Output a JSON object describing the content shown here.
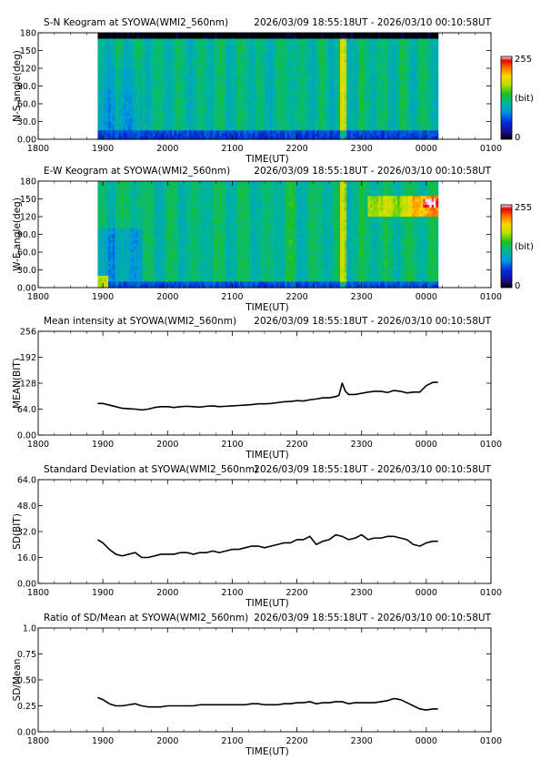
{
  "time_axis": {
    "ticks": [
      "1800",
      "1900",
      "2000",
      "2100",
      "2200",
      "2300",
      "0000",
      "0100"
    ],
    "xlabel": "TIME(UT)"
  },
  "colorbar": {
    "max_label": "255",
    "unit_label": "(bit)",
    "min_label": "0"
  },
  "chart_data": [
    {
      "type": "heatmap",
      "title": "S-N Keogram at SYOWA(WMI2_560nm)",
      "subtitle": "2026/03/09 18:55:18UT - 2026/03/10 00:10:58UT",
      "xlabel": "TIME(UT)",
      "ylabel": "N-S angle(deg)",
      "yticks": [
        "180",
        "150",
        "120",
        "90.0",
        "60.0",
        "30.0",
        "0.00"
      ],
      "ylim": [
        0,
        180
      ],
      "data_range_hours": [
        18.92,
        24.18
      ],
      "color_scale": {
        "min": 0,
        "max": 255,
        "unit": "(bit)"
      },
      "notes": "Blue-green to green intensity; brighter yellow bands near 22:45 UT; black strip at top (no data) near 180 deg."
    },
    {
      "type": "heatmap",
      "title": "E-W Keogram at SYOWA(WMI2_560nm)",
      "subtitle": "2026/03/09 18:55:18UT - 2026/03/10 00:10:58UT",
      "xlabel": "TIME(UT)",
      "ylabel": "W-E angle(deg)",
      "yticks": [
        "180",
        "150",
        "120",
        "90.0",
        "60.0",
        "30.0",
        "0.00"
      ],
      "ylim": [
        0,
        180
      ],
      "data_range_hours": [
        18.92,
        24.18
      ],
      "color_scale": {
        "min": 0,
        "max": 255,
        "unit": "(bit)"
      },
      "notes": "Yellow-orange band near 130-150 deg after 23:00 UT, white saturation near 00:00 UT."
    },
    {
      "type": "line",
      "title": "Mean intensity at SYOWA(WMI2_560nm)",
      "subtitle": "2026/03/09 18:55:18UT - 2026/03/10 00:10:58UT",
      "xlabel": "TIME(UT)",
      "ylabel": "MEAN(BIT)",
      "yticks": [
        "256",
        "192",
        "128",
        "64.0",
        "0.00"
      ],
      "ylim": [
        0,
        256
      ],
      "series": [
        {
          "x": [
            18.92,
            19.0,
            19.1,
            19.2,
            19.3,
            19.4,
            19.5,
            19.6,
            19.7,
            19.8,
            19.9,
            20.0,
            20.1,
            20.2,
            20.3,
            20.4,
            20.5,
            20.6,
            20.7,
            20.8,
            20.9,
            21.0,
            21.1,
            21.2,
            21.3,
            21.4,
            21.5,
            21.6,
            21.7,
            21.8,
            21.9,
            22.0,
            22.1,
            22.2,
            22.3,
            22.4,
            22.5,
            22.6,
            22.65,
            22.7,
            22.75,
            22.8,
            22.9,
            23.0,
            23.1,
            23.2,
            23.3,
            23.4,
            23.5,
            23.6,
            23.7,
            23.8,
            23.9,
            24.0,
            24.1,
            24.18
          ],
          "y": [
            78,
            78,
            74,
            70,
            66,
            65,
            64,
            62,
            64,
            68,
            70,
            70,
            68,
            70,
            71,
            70,
            69,
            71,
            72,
            70,
            71,
            72,
            73,
            74,
            75,
            77,
            77,
            78,
            80,
            82,
            83,
            85,
            84,
            87,
            89,
            92,
            92,
            95,
            98,
            128,
            108,
            100,
            100,
            103,
            106,
            108,
            108,
            105,
            110,
            108,
            104,
            106,
            106,
            122,
            130,
            130
          ]
        }
      ]
    },
    {
      "type": "line",
      "title": "Standard Deviation at SYOWA(WMI2_560nm)",
      "subtitle": "2026/03/09 18:55:18UT - 2026/03/10 00:10:58UT",
      "xlabel": "TIME(UT)",
      "ylabel": "SD(BIT)",
      "yticks": [
        "64.0",
        "48.0",
        "32.0",
        "16.0",
        "0.00"
      ],
      "ylim": [
        0,
        64
      ],
      "series": [
        {
          "x": [
            18.92,
            19.0,
            19.1,
            19.2,
            19.3,
            19.4,
            19.5,
            19.6,
            19.7,
            19.8,
            19.9,
            20.0,
            20.1,
            20.2,
            20.3,
            20.4,
            20.5,
            20.6,
            20.7,
            20.8,
            20.9,
            21.0,
            21.1,
            21.2,
            21.3,
            21.4,
            21.5,
            21.6,
            21.7,
            21.8,
            21.9,
            22.0,
            22.1,
            22.2,
            22.3,
            22.4,
            22.5,
            22.6,
            22.7,
            22.8,
            22.9,
            23.0,
            23.1,
            23.2,
            23.3,
            23.4,
            23.5,
            23.6,
            23.7,
            23.8,
            23.9,
            24.0,
            24.1,
            24.18
          ],
          "y": [
            27,
            25,
            21,
            18,
            17,
            18,
            19,
            16,
            16,
            17,
            18,
            18,
            18,
            19,
            19,
            18,
            19,
            19,
            20,
            19,
            20,
            21,
            21,
            22,
            23,
            23,
            22,
            23,
            24,
            25,
            25,
            27,
            27,
            29,
            24,
            26,
            27,
            30,
            29,
            27,
            28,
            30,
            27,
            28,
            28,
            29,
            29,
            28,
            27,
            24,
            23,
            25,
            26,
            26
          ]
        }
      ]
    },
    {
      "type": "line",
      "title": "Ratio of SD/Mean at SYOWA(WMI2_560nm)",
      "subtitle": "2026/03/09 18:55:18UT - 2026/03/10 00:10:58UT",
      "xlabel": "TIME(UT)",
      "ylabel": "SD/Mean",
      "yticks": [
        "1.0",
        "0.75",
        "0.50",
        "0.25",
        "0.00"
      ],
      "ylim": [
        0,
        1.0
      ],
      "series": [
        {
          "x": [
            18.92,
            19.0,
            19.1,
            19.2,
            19.3,
            19.4,
            19.5,
            19.6,
            19.7,
            19.8,
            19.9,
            20.0,
            20.1,
            20.2,
            20.3,
            20.4,
            20.5,
            20.6,
            20.7,
            20.8,
            20.9,
            21.0,
            21.1,
            21.2,
            21.3,
            21.4,
            21.5,
            21.6,
            21.7,
            21.8,
            21.9,
            22.0,
            22.1,
            22.2,
            22.3,
            22.4,
            22.5,
            22.6,
            22.7,
            22.8,
            22.9,
            23.0,
            23.1,
            23.2,
            23.3,
            23.4,
            23.5,
            23.6,
            23.7,
            23.8,
            23.9,
            24.0,
            24.1,
            24.18
          ],
          "y": [
            0.33,
            0.31,
            0.27,
            0.25,
            0.25,
            0.26,
            0.27,
            0.25,
            0.24,
            0.24,
            0.24,
            0.25,
            0.25,
            0.25,
            0.25,
            0.25,
            0.26,
            0.26,
            0.26,
            0.26,
            0.26,
            0.26,
            0.26,
            0.26,
            0.27,
            0.27,
            0.26,
            0.26,
            0.26,
            0.27,
            0.27,
            0.28,
            0.28,
            0.29,
            0.27,
            0.28,
            0.28,
            0.29,
            0.29,
            0.27,
            0.28,
            0.28,
            0.28,
            0.28,
            0.29,
            0.3,
            0.32,
            0.31,
            0.28,
            0.25,
            0.22,
            0.21,
            0.22,
            0.22
          ]
        }
      ]
    }
  ]
}
